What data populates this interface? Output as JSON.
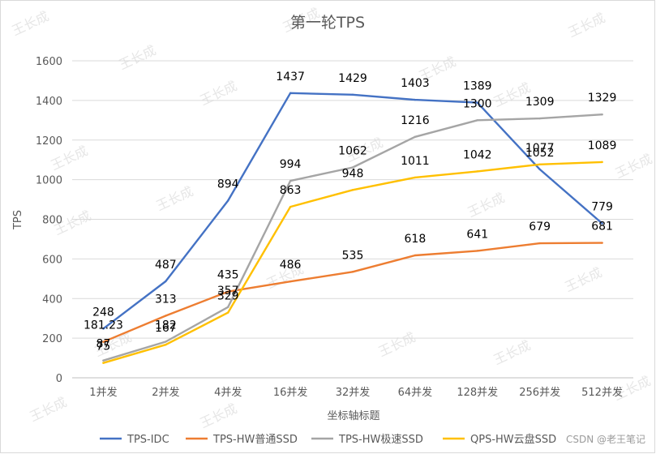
{
  "chart_data": {
    "type": "line",
    "title": "第一轮TPS",
    "xlabel": "坐标轴标题",
    "ylabel": "TPS",
    "ylim": [
      0,
      1600
    ],
    "yticks": [
      0,
      200,
      400,
      600,
      800,
      1000,
      1200,
      1400,
      1600
    ],
    "categories": [
      "1并发",
      "2并发",
      "4并发",
      "16并发",
      "32并发",
      "64并发",
      "128并发",
      "256并发",
      "512并发"
    ],
    "grid": true,
    "legend_position": "bottom",
    "series": [
      {
        "name": "TPS-IDC",
        "color": "#4472c4",
        "values": [
          248,
          487,
          894,
          1437,
          1429,
          1403,
          1389,
          1052,
          779
        ],
        "labels": [
          "248",
          "487",
          "894",
          "1437",
          "1429",
          "1403",
          "1389",
          "1052",
          "779"
        ]
      },
      {
        "name": "TPS-HW普通SSD",
        "color": "#ed7d31",
        "values": [
          181.23,
          313,
          435,
          486,
          535,
          618,
          641,
          679,
          681
        ],
        "labels": [
          "181.23",
          "313",
          "435",
          "486",
          "535",
          "618",
          "641",
          "679",
          "681"
        ]
      },
      {
        "name": "TPS-HW极速SSD",
        "color": "#a5a5a5",
        "values": [
          87,
          182,
          357,
          994,
          1062,
          1216,
          1300,
          1309,
          1329
        ],
        "labels": [
          "87",
          "182",
          "357",
          "994",
          "1062",
          "1216",
          "1300",
          "1309",
          "1329"
        ]
      },
      {
        "name": "QPS-HW云盘SSD",
        "color": "#ffc000",
        "values": [
          75,
          167,
          329,
          863,
          948,
          1011,
          1042,
          1077,
          1089
        ],
        "labels": [
          "75",
          "167",
          "329",
          "863",
          "948",
          "1011",
          "1042",
          "1077",
          "1089"
        ]
      }
    ]
  },
  "watermark_text": "王长成",
  "footer_text": "CSDN @老王笔记"
}
